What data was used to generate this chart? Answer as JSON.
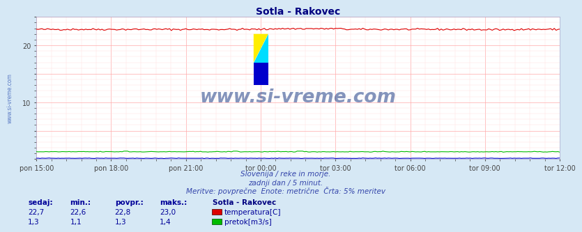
{
  "title": "Sotla - Rakovec",
  "title_color": "#000080",
  "bg_color": "#d6e8f5",
  "plot_bg_color": "#ffffff",
  "grid_color_major": "#ffaaaa",
  "grid_color_minor": "#ffdddd",
  "n_points": 288,
  "temp_value": 22.7,
  "temp_min": 22.6,
  "temp_avg": 22.8,
  "temp_max": 23.0,
  "flow_value": 1.3,
  "flow_min": 1.1,
  "flow_avg": 1.3,
  "flow_max": 1.4,
  "ylim_min": 0,
  "ylim_max": 25,
  "x_labels": [
    "pon 15:00",
    "pon 18:00",
    "pon 21:00",
    "tor 00:00",
    "tor 03:00",
    "tor 06:00",
    "tor 09:00",
    "tor 12:00"
  ],
  "temp_color": "#dd0000",
  "flow_color": "#00bb00",
  "height_color": "#0000cc",
  "watermark_text": "www.si-vreme.com",
  "watermark_color": "#0a2a7a",
  "watermark_alpha": 0.5,
  "logo_yellow": "#ffee00",
  "logo_cyan": "#00ddff",
  "logo_blue": "#0000cc",
  "sub_line1": "Slovenija / reke in morje.",
  "sub_line2": "zadnji dan / 5 minut.",
  "sub_line3": "Meritve: povprečne  Enote: metrične  Črta: 5% meritev",
  "sub_color": "#3344aa",
  "legend_title": "Sotla - Rakovec",
  "legend_title_color": "#000080",
  "legend_temp_label": "temperatura[C]",
  "legend_flow_label": "pretok[m3/s]",
  "left_label": "www.si-vreme.com",
  "left_label_color": "#4466bb",
  "table_header": [
    "sedaj:",
    "min.:",
    "povpr.:",
    "maks.:"
  ],
  "table_color": "#000099"
}
